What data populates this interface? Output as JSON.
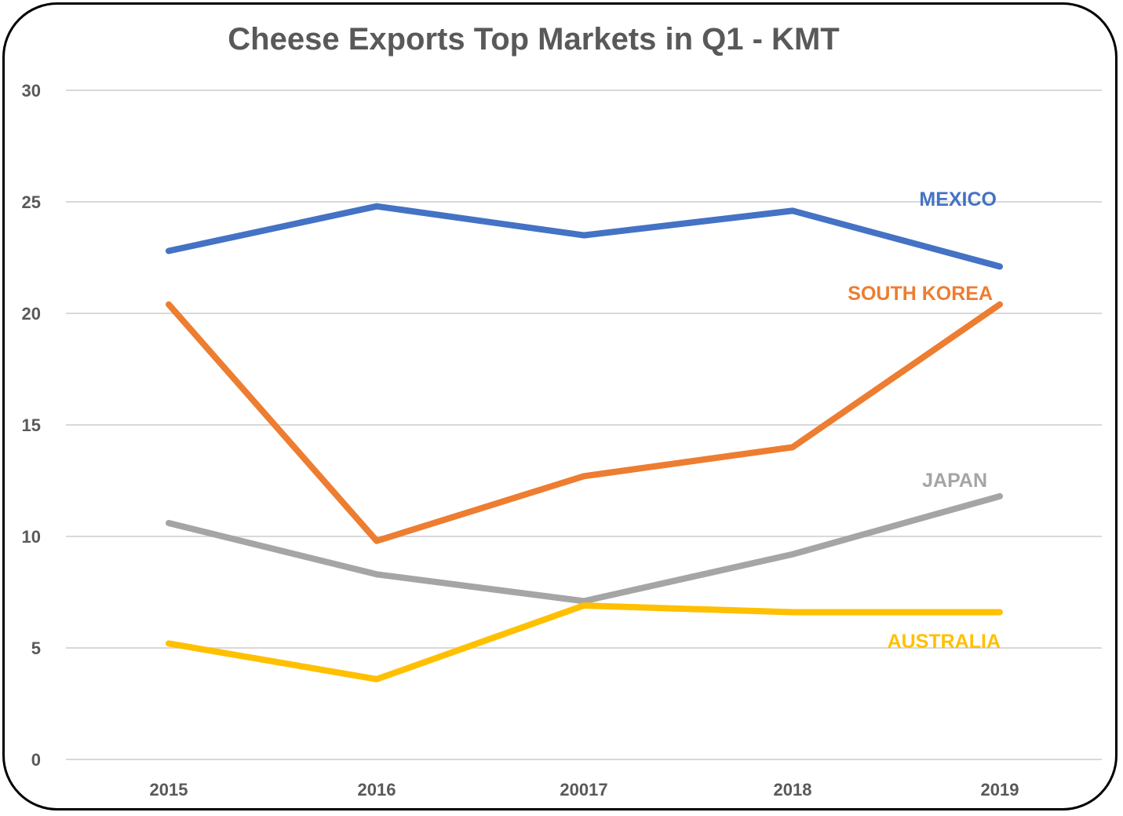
{
  "chart_data": {
    "type": "line",
    "title": "Cheese Exports Top Markets in Q1 - KMT",
    "xlabel": "",
    "ylabel": "",
    "categories": [
      "2015",
      "2016",
      "20017",
      "2018",
      "2019"
    ],
    "ylim": [
      0,
      30
    ],
    "yticks": [
      0,
      5,
      10,
      15,
      20,
      25,
      30
    ],
    "grid": true,
    "legend": "inline labels at right end of series",
    "series": [
      {
        "name": "MEXICO",
        "color": "#4472C4",
        "values": [
          22.8,
          24.8,
          23.5,
          24.6,
          22.1
        ]
      },
      {
        "name": "SOUTH KOREA",
        "color": "#ED7D31",
        "values": [
          20.4,
          9.8,
          12.7,
          14.0,
          20.4
        ]
      },
      {
        "name": "JAPAN",
        "color": "#A5A5A5",
        "values": [
          10.6,
          8.3,
          7.1,
          9.2,
          11.8
        ]
      },
      {
        "name": "AUSTRALIA",
        "color": "#FFC000",
        "values": [
          5.2,
          3.6,
          6.9,
          6.6,
          6.6
        ]
      }
    ]
  }
}
